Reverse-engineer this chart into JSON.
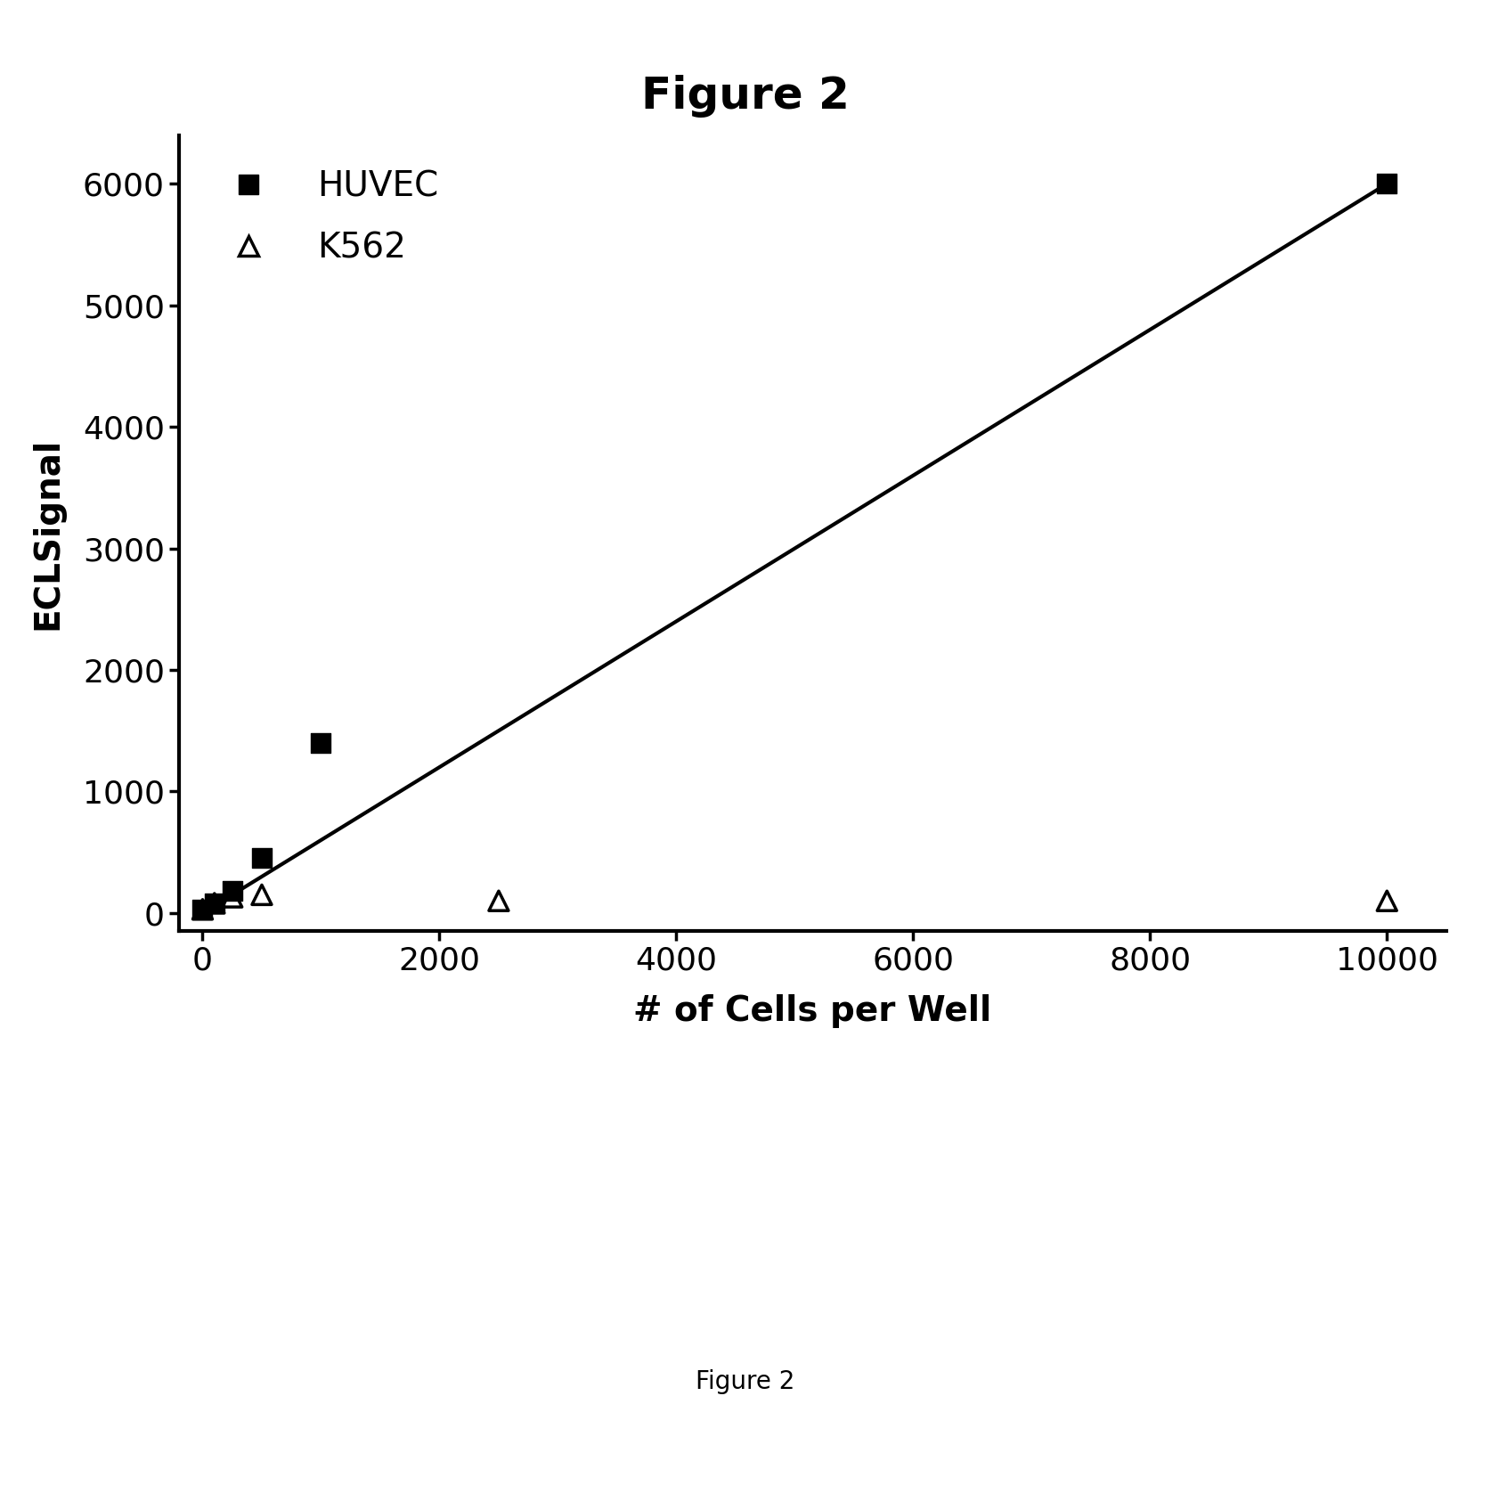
{
  "title": "Figure 2",
  "subtitle": "Figure 2",
  "xlabel": "# of Cells per Well",
  "ylabel": "ECLSignal",
  "huvec_x": [
    0,
    100,
    250,
    500,
    1000,
    10000
  ],
  "huvec_y": [
    30,
    80,
    180,
    450,
    1400,
    6000
  ],
  "k562_x": [
    0,
    100,
    250,
    500,
    2500,
    10000
  ],
  "k562_y": [
    30,
    80,
    130,
    150,
    100,
    100
  ],
  "line_x": [
    0,
    10000
  ],
  "line_y": [
    0,
    6000
  ],
  "xlim": [
    -200,
    10500
  ],
  "ylim": [
    -150,
    6400
  ],
  "xticks": [
    0,
    2000,
    4000,
    6000,
    8000,
    10000
  ],
  "yticks": [
    0,
    1000,
    2000,
    3000,
    4000,
    5000,
    6000
  ],
  "background_color": "#ffffff",
  "line_color": "#000000",
  "marker_color": "#000000",
  "title_fontsize": 36,
  "label_fontsize": 28,
  "tick_fontsize": 26,
  "legend_fontsize": 28,
  "subtitle_fontsize": 20,
  "legend_label_huvec": "HUVEC",
  "legend_label_k562": "K562"
}
